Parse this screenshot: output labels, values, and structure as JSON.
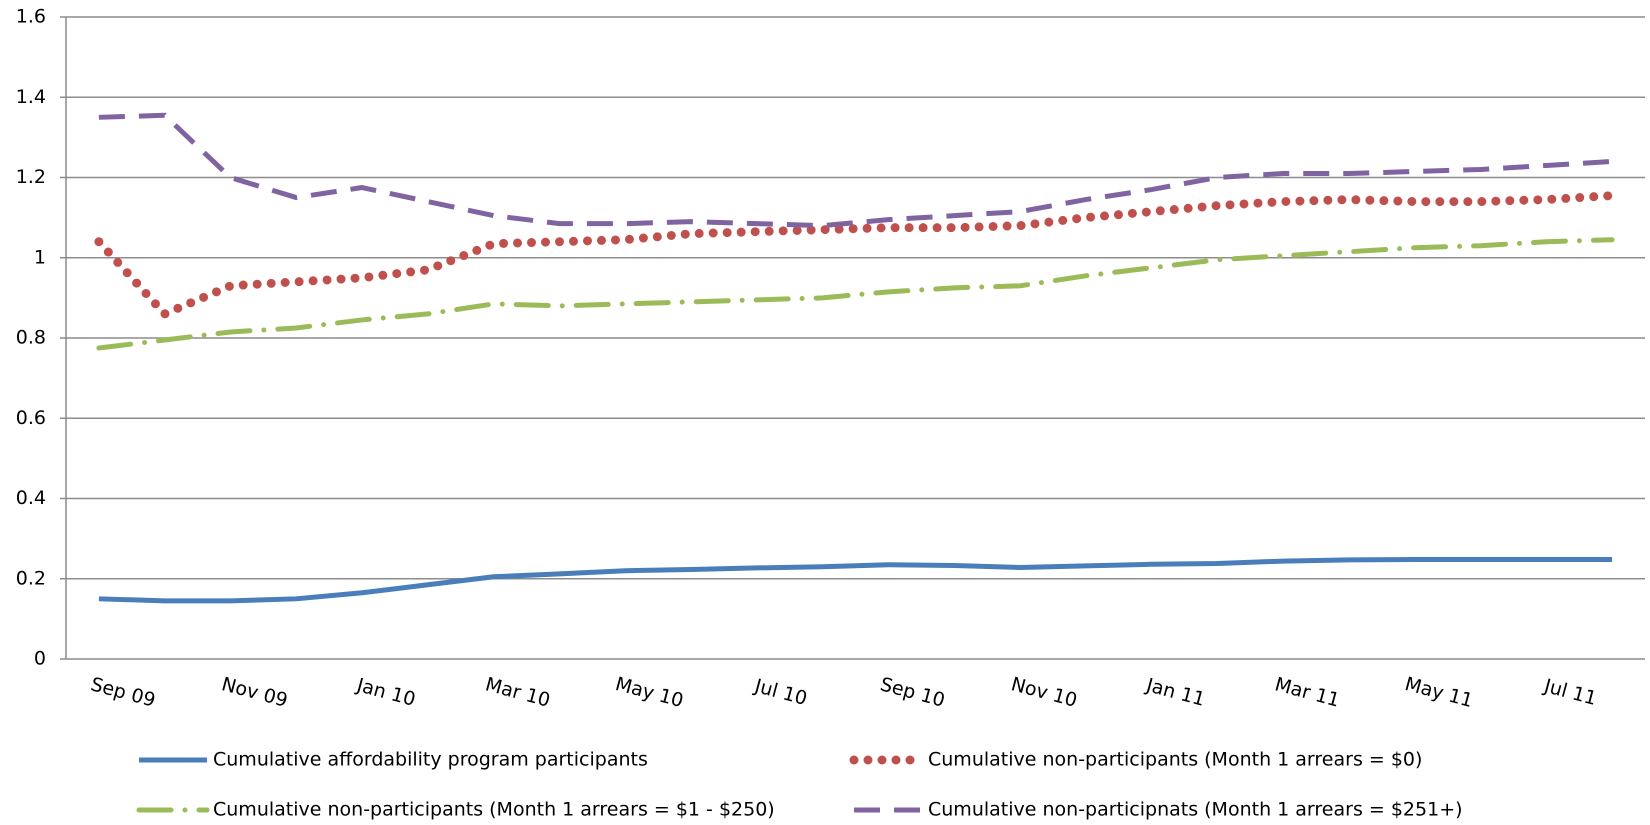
{
  "chart_data": {
    "type": "line",
    "categories": [
      "Sep 09",
      null,
      "Nov 09",
      null,
      "Jan 10",
      null,
      "Mar 10",
      null,
      "May 10",
      null,
      "Jul 10",
      null,
      "Sep 10",
      null,
      "Nov 10",
      null,
      "Jan 11",
      null,
      "Mar 11",
      null,
      "May 11",
      null,
      "Jul 11",
      null
    ],
    "ylim": [
      0,
      1.6
    ],
    "yticks": [
      0,
      0.2,
      0.4,
      0.6,
      0.8,
      1,
      1.2,
      1.4,
      1.6
    ],
    "grid": true,
    "legend": "bottom",
    "series": [
      {
        "name": "Cumulative affordability program participants",
        "color": "#4a7ebb",
        "dash": "solid",
        "values": [
          0.15,
          0.145,
          0.145,
          0.15,
          0.165,
          0.185,
          0.205,
          0.212,
          0.22,
          0.223,
          0.227,
          0.23,
          0.235,
          0.233,
          0.228,
          0.232,
          0.236,
          0.238,
          0.244,
          0.247,
          0.248,
          0.248,
          0.248,
          0.248
        ]
      },
      {
        "name": "Cumulative non-participants (Month 1 arrears = $0)",
        "color": "#c0504d",
        "dash": "dot",
        "values": [
          1.04,
          0.86,
          0.93,
          0.94,
          0.95,
          0.97,
          1.035,
          1.04,
          1.045,
          1.06,
          1.065,
          1.07,
          1.075,
          1.075,
          1.08,
          1.1,
          1.115,
          1.13,
          1.14,
          1.145,
          1.14,
          1.14,
          1.145,
          1.155
        ]
      },
      {
        "name": "Cumulative non-participants (Month 1 arrears = $1 - $250)",
        "color": "#9bbb59",
        "dash": "dash-dot",
        "values": [
          0.775,
          0.795,
          0.815,
          0.825,
          0.845,
          0.86,
          0.885,
          0.88,
          0.885,
          0.89,
          0.895,
          0.9,
          0.915,
          0.925,
          0.93,
          0.955,
          0.975,
          0.995,
          1.005,
          1.015,
          1.025,
          1.03,
          1.04,
          1.045
        ]
      },
      {
        "name": "Cumulative non-participnats (Month 1 arrears = $251+)",
        "color": "#8064a2",
        "dash": "dash",
        "values": [
          1.35,
          1.355,
          1.2,
          1.15,
          1.175,
          1.14,
          1.105,
          1.085,
          1.085,
          1.09,
          1.085,
          1.08,
          1.095,
          1.105,
          1.115,
          1.145,
          1.17,
          1.2,
          1.21,
          1.21,
          1.215,
          1.22,
          1.23,
          1.24
        ]
      }
    ]
  }
}
